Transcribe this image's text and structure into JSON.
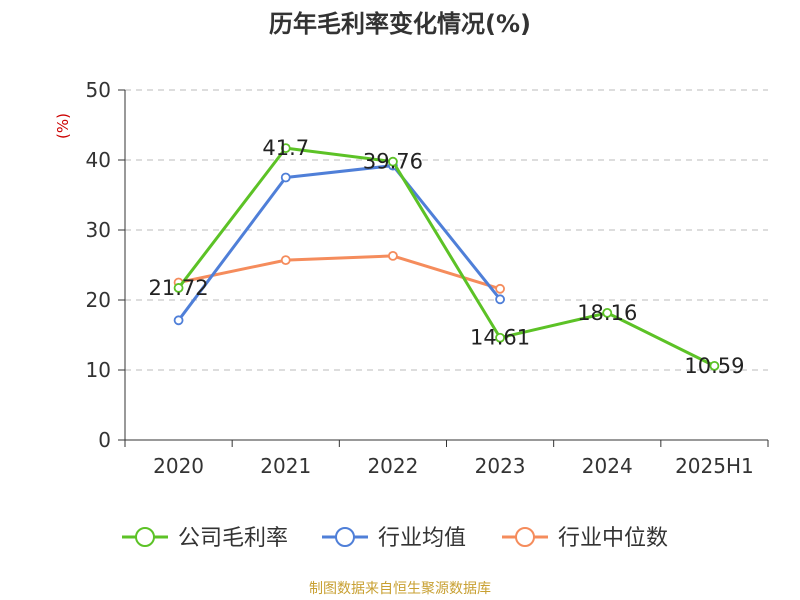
{
  "chart_data": {
    "type": "line",
    "title": "历年毛利率变化情况(%)",
    "ylabel": "(%)",
    "categories": [
      "2020",
      "2021",
      "2022",
      "2023",
      "2024",
      "2025H1"
    ],
    "ylim": [
      0,
      50
    ],
    "yticks": [
      0,
      10,
      20,
      30,
      40,
      50
    ],
    "grid": true,
    "legend_position": "bottom",
    "series": [
      {
        "name": "公司毛利率",
        "color": "#5cc226",
        "values": [
          21.72,
          41.7,
          39.76,
          14.61,
          18.16,
          10.59
        ],
        "labels": [
          "21.72",
          "41.7",
          "39.76",
          "14.61",
          "18.16",
          "10.59"
        ]
      },
      {
        "name": "行业均值",
        "color": "#4f7fd8",
        "values": [
          17.1,
          37.5,
          39.2,
          20.1,
          null,
          null
        ]
      },
      {
        "name": "行业中位数",
        "color": "#f58c5c",
        "values": [
          22.5,
          25.7,
          26.3,
          21.6,
          null,
          null
        ]
      }
    ]
  },
  "source_text": "制图数据来自恒生聚源数据库"
}
